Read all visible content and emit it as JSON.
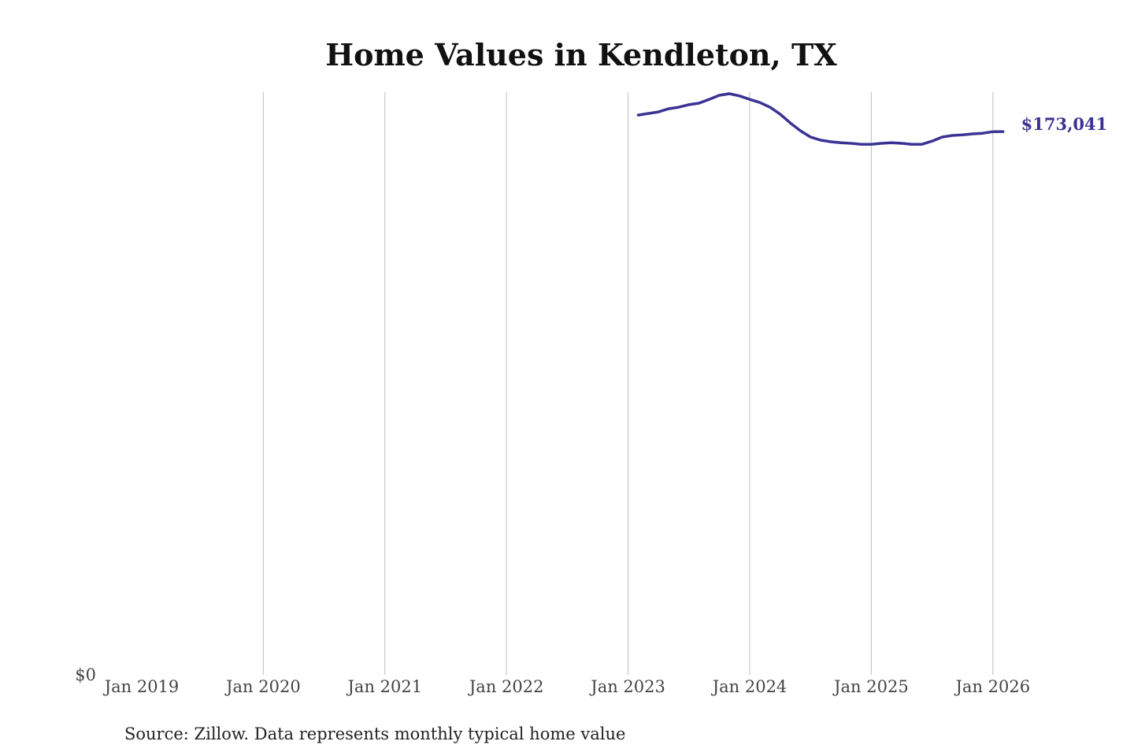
{
  "chart_data": {
    "type": "line",
    "title": "Home Values in Kendleton, TX",
    "source": "Source: Zillow. Data represents monthly typical home value",
    "xlabel": "",
    "ylabel": "",
    "x_ticks": [
      "Jan 2019",
      "Jan 2020",
      "Jan 2021",
      "Jan 2022",
      "Jan 2023",
      "Jan 2024",
      "Jan 2025",
      "Jan 2026"
    ],
    "y_ticks": [
      "$0"
    ],
    "xlim": [
      "2019-01",
      "2026-04"
    ],
    "ylim": [
      0,
      185600
    ],
    "grid": "vertical",
    "line_color": "#3b3394",
    "end_label": "$173,041",
    "series": [
      {
        "x": [
          "2023-02",
          "2023-03",
          "2023-04",
          "2023-05",
          "2023-06",
          "2023-07",
          "2023-08",
          "2023-09",
          "2023-10",
          "2023-11",
          "2023-12",
          "2024-01",
          "2024-02",
          "2024-03",
          "2024-04",
          "2024-05",
          "2024-06",
          "2024-07",
          "2024-08",
          "2024-09",
          "2024-10",
          "2024-11",
          "2024-12",
          "2025-01",
          "2025-02",
          "2025-03",
          "2025-04",
          "2025-05",
          "2025-06",
          "2025-07",
          "2025-08",
          "2025-09",
          "2025-10",
          "2025-11",
          "2025-12",
          "2026-01",
          "2026-02"
        ],
        "values": [
          178300,
          178800,
          179300,
          180300,
          180800,
          181600,
          182100,
          183300,
          184600,
          185100,
          184400,
          183300,
          182300,
          180800,
          178600,
          175800,
          173300,
          171300,
          170300,
          169800,
          169500,
          169300,
          169000,
          169000,
          169300,
          169500,
          169300,
          169000,
          169000,
          170000,
          171300,
          171800,
          172000,
          172300,
          172500,
          173000,
          173041
        ]
      }
    ]
  }
}
